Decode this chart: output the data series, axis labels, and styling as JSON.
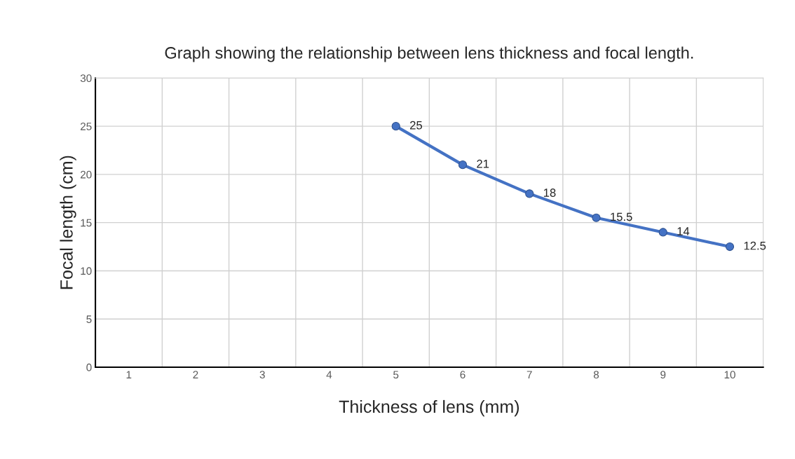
{
  "chart_data": {
    "type": "line",
    "title": "Graph showing the relationship between lens thickness and focal length.",
    "xlabel": "Thickness of lens (mm)",
    "ylabel": "Focal length (cm)",
    "categories": [
      "1",
      "2",
      "3",
      "4",
      "5",
      "6",
      "7",
      "8",
      "9",
      "10"
    ],
    "series": [
      {
        "color": "#4472c4",
        "values": [
          null,
          null,
          null,
          null,
          25,
          21,
          18,
          15.5,
          14,
          12.5
        ]
      }
    ],
    "ylim": [
      0,
      30
    ],
    "yticks": [
      0,
      5,
      10,
      15,
      20,
      25,
      30
    ],
    "grid": true,
    "marker": "circle",
    "line_style": "solid",
    "data_labels": true
  }
}
